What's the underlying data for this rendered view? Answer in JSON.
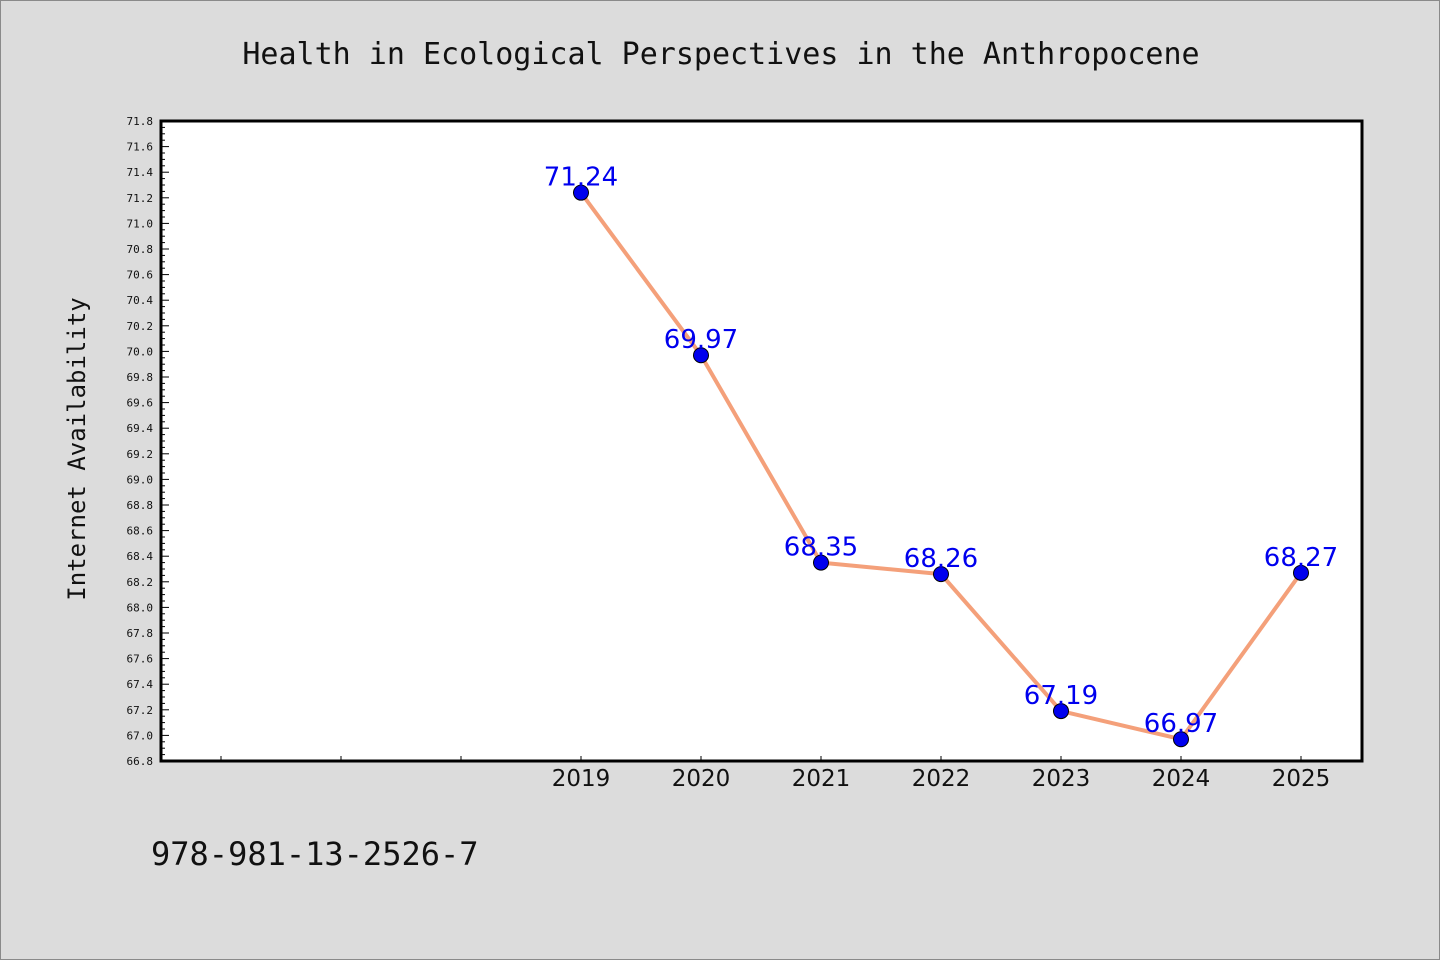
{
  "chart_data": {
    "type": "line",
    "title": "Health in Ecological Perspectives in the Anthropocene",
    "xlabel": "",
    "ylabel": "Internet Availability",
    "x": [
      "2019",
      "2020",
      "2021",
      "2022",
      "2023",
      "2024",
      "2025"
    ],
    "x_slots": 10,
    "x_offset": 3,
    "series": [
      {
        "values": [
          71.24,
          69.97,
          68.35,
          68.26,
          67.19,
          66.97,
          68.27
        ],
        "data_labels": [
          "71.24",
          "69.97",
          "68.35",
          "68.26",
          "67.19",
          "66.97",
          "68.27"
        ]
      }
    ],
    "ylim": [
      66.8,
      71.8
    ],
    "y_ticks": [
      "66.8",
      "67.0",
      "67.2",
      "67.4",
      "67.6",
      "67.8",
      "68.0",
      "68.2",
      "68.4",
      "68.6",
      "68.8",
      "69.0",
      "69.2",
      "69.4",
      "69.6",
      "69.8",
      "70.0",
      "70.2",
      "70.4",
      "70.6",
      "70.8",
      "71.0",
      "71.2",
      "71.4",
      "71.6",
      "71.8"
    ],
    "grid": false,
    "legend": "none",
    "colors": {
      "line": "#f4a07a",
      "marker": "#0000ee",
      "label": "#0000ee",
      "plot_bg": "#ffffff",
      "page_bg": "#dcdcdc"
    }
  },
  "footer": {
    "text": "978-981-13-2526-7"
  }
}
